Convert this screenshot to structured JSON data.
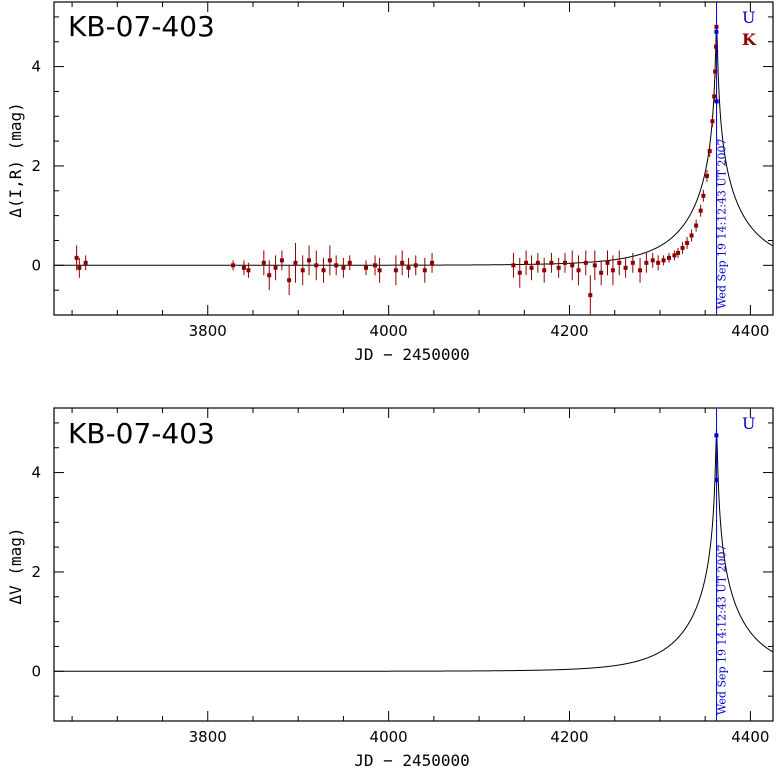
{
  "chart_data": [
    {
      "type": "scatter",
      "title": "KB-07-403",
      "xlabel": "JD − 2450000",
      "ylabel": "Δ(I,R) (mag)",
      "xlim": [
        3630,
        4425
      ],
      "ylim": [
        -1.0,
        5.3
      ],
      "xticks": [
        3800,
        4000,
        4200,
        4400
      ],
      "yticks": [
        0,
        2,
        4
      ],
      "peak_jd": 4362.6,
      "peak_label": "Wed Sep 19 14:12:43 UT 2007",
      "legend": [
        {
          "label": "U",
          "color": "#0000cc"
        },
        {
          "label": "K",
          "color": "#8b0000"
        }
      ],
      "model": {
        "t0": 4362.6,
        "tE": 70,
        "u0": 0.012
      },
      "series": [
        {
          "name": "K",
          "color": "#8b0000",
          "points": [
            [
              3655,
              0.15,
              0.25
            ],
            [
              3658,
              -0.05,
              0.2
            ],
            [
              3665,
              0.05,
              0.15
            ],
            [
              3828,
              0.0,
              0.1
            ],
            [
              3840,
              -0.05,
              0.15
            ],
            [
              3845,
              -0.1,
              0.15
            ],
            [
              3862,
              0.05,
              0.25
            ],
            [
              3868,
              -0.2,
              0.3
            ],
            [
              3875,
              -0.05,
              0.25
            ],
            [
              3882,
              0.1,
              0.2
            ],
            [
              3890,
              -0.3,
              0.3
            ],
            [
              3897,
              0.05,
              0.4
            ],
            [
              3905,
              -0.1,
              0.3
            ],
            [
              3912,
              0.1,
              0.3
            ],
            [
              3920,
              0.0,
              0.3
            ],
            [
              3928,
              -0.1,
              0.25
            ],
            [
              3935,
              0.1,
              0.3
            ],
            [
              3942,
              0.0,
              0.2
            ],
            [
              3950,
              -0.05,
              0.2
            ],
            [
              3957,
              0.05,
              0.15
            ],
            [
              3975,
              -0.05,
              0.15
            ],
            [
              3985,
              0.0,
              0.2
            ],
            [
              3990,
              -0.1,
              0.25
            ],
            [
              4008,
              -0.1,
              0.3
            ],
            [
              4015,
              0.05,
              0.25
            ],
            [
              4022,
              -0.05,
              0.2
            ],
            [
              4030,
              0.0,
              0.2
            ],
            [
              4040,
              -0.1,
              0.25
            ],
            [
              4048,
              0.05,
              0.2
            ],
            [
              4138,
              0.0,
              0.25
            ],
            [
              4145,
              -0.15,
              0.3
            ],
            [
              4152,
              0.05,
              0.25
            ],
            [
              4158,
              -0.05,
              0.25
            ],
            [
              4165,
              0.05,
              0.2
            ],
            [
              4172,
              -0.1,
              0.25
            ],
            [
              4180,
              0.05,
              0.2
            ],
            [
              4188,
              -0.05,
              0.2
            ],
            [
              4195,
              0.05,
              0.2
            ],
            [
              4203,
              0.0,
              0.3
            ],
            [
              4210,
              -0.1,
              0.3
            ],
            [
              4218,
              0.05,
              0.25
            ],
            [
              4223,
              -0.6,
              0.4
            ],
            [
              4228,
              0.0,
              0.3
            ],
            [
              4235,
              -0.15,
              0.25
            ],
            [
              4242,
              0.05,
              0.25
            ],
            [
              4248,
              -0.1,
              0.3
            ],
            [
              4255,
              0.05,
              0.25
            ],
            [
              4262,
              -0.05,
              0.2
            ],
            [
              4270,
              0.05,
              0.2
            ],
            [
              4278,
              -0.1,
              0.25
            ],
            [
              4285,
              0.05,
              0.2
            ],
            [
              4292,
              0.1,
              0.15
            ],
            [
              4298,
              0.05,
              0.15
            ],
            [
              4304,
              0.1,
              0.1
            ],
            [
              4310,
              0.15,
              0.1
            ],
            [
              4316,
              0.2,
              0.1
            ],
            [
              4320,
              0.25,
              0.1
            ],
            [
              4325,
              0.35,
              0.12
            ],
            [
              4330,
              0.45,
              0.12
            ],
            [
              4335,
              0.6,
              0.12
            ],
            [
              4340,
              0.8,
              0.12
            ],
            [
              4345,
              1.1,
              0.12
            ],
            [
              4348,
              1.4,
              0.12
            ],
            [
              4352,
              1.8,
              0.12
            ],
            [
              4355,
              2.3,
              0.12
            ],
            [
              4358,
              2.9,
              0.12
            ],
            [
              4360,
              3.4,
              0.12
            ],
            [
              4361,
              3.9,
              0.12
            ],
            [
              4362,
              4.4,
              0.15
            ],
            [
              4362.5,
              4.8,
              0.15
            ]
          ]
        },
        {
          "name": "U",
          "color": "#0000cc",
          "points": [
            [
              4362.4,
              4.7,
              0.1
            ],
            [
              4362.7,
              3.3,
              0.1
            ]
          ]
        }
      ]
    },
    {
      "type": "scatter",
      "title": "KB-07-403",
      "xlabel": "JD − 2450000",
      "ylabel": "ΔV (mag)",
      "xlim": [
        3630,
        4425
      ],
      "ylim": [
        -1.0,
        5.3
      ],
      "xticks": [
        3800,
        4000,
        4200,
        4400
      ],
      "yticks": [
        0,
        2,
        4
      ],
      "peak_jd": 4362.6,
      "peak_label": "Wed Sep 19 14:12:43 UT 2007",
      "legend": [
        {
          "label": "U",
          "color": "#0000cc"
        }
      ],
      "model": {
        "t0": 4362.6,
        "tE": 70,
        "u0": 0.012
      },
      "series": [
        {
          "name": "U",
          "color": "#0000cc",
          "points": [
            [
              4362.4,
              4.75,
              0.1
            ],
            [
              4362.6,
              3.85,
              0.1
            ]
          ]
        }
      ]
    }
  ]
}
